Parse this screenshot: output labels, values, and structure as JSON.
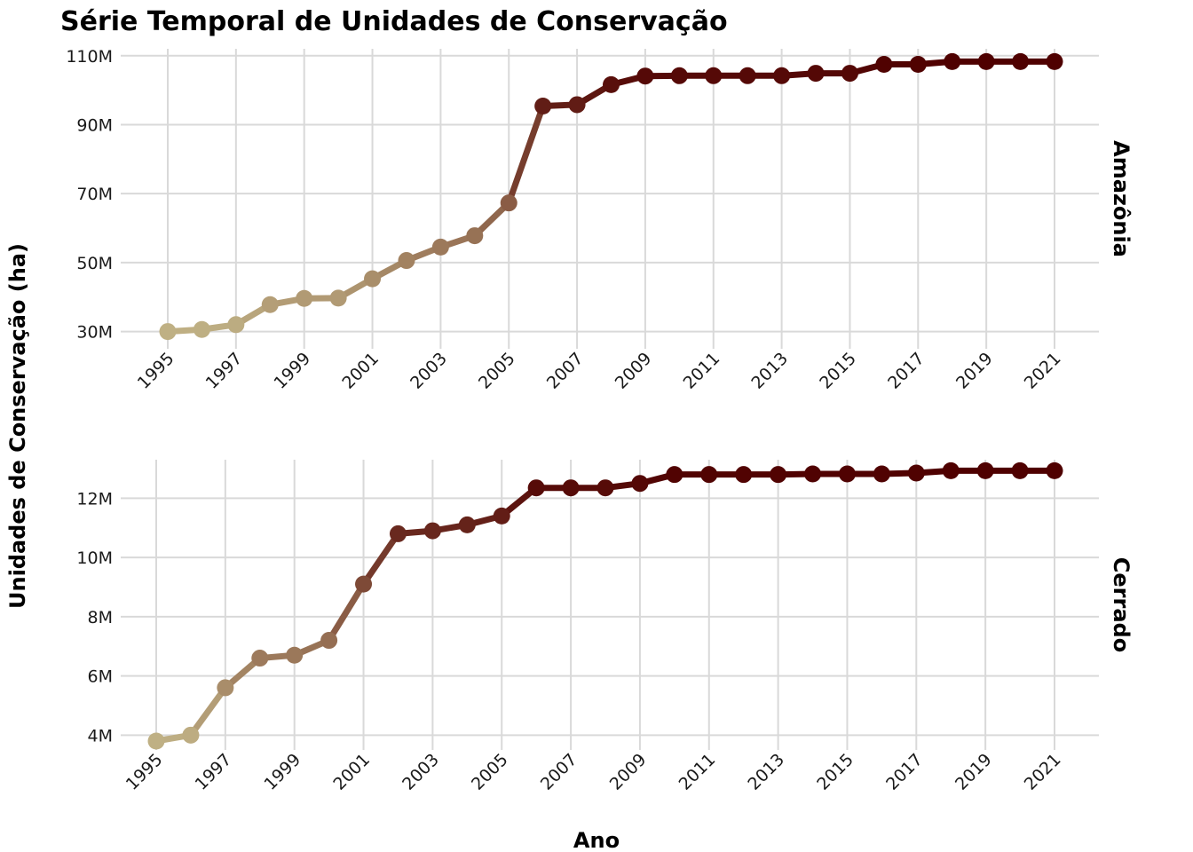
{
  "chart_data": {
    "type": "line",
    "title": "Série Temporal de Unidades de Conservação",
    "xlabel": "Ano",
    "ylabel": "Unidades de Conservação (ha)",
    "color_low": "#bfb084",
    "color_high": "#4f0000",
    "panels": [
      {
        "name": "Amazônia",
        "x": [
          1995,
          1996,
          1997,
          1998,
          1999,
          2000,
          2001,
          2002,
          2003,
          2004,
          2005,
          2006,
          2007,
          2008,
          2009,
          2010,
          2011,
          2012,
          2013,
          2014,
          2015,
          2016,
          2017,
          2018,
          2019,
          2020,
          2021
        ],
        "values": [
          30.0,
          30.6,
          32.0,
          37.8,
          39.6,
          39.7,
          45.3,
          50.6,
          54.5,
          57.8,
          67.3,
          95.4,
          95.8,
          101.6,
          104.1,
          104.2,
          104.2,
          104.2,
          104.2,
          104.9,
          104.9,
          107.5,
          107.5,
          108.3,
          108.3,
          108.3,
          108.3
        ],
        "ylim": [
          25,
          112
        ],
        "y_ticks": [
          30,
          50,
          70,
          90,
          110
        ],
        "y_tick_labels": [
          "30M",
          "50M",
          "70M",
          "90M",
          "110M"
        ],
        "x_ticks": [
          1995,
          1997,
          1999,
          2001,
          2003,
          2005,
          2007,
          2009,
          2011,
          2013,
          2015,
          2017,
          2019,
          2021
        ],
        "x_tick_labels": [
          "1995",
          "1997",
          "1999",
          "2001",
          "2003",
          "2005",
          "2007",
          "2009",
          "2011",
          "2013",
          "2015",
          "2017",
          "2019",
          "2021"
        ]
      },
      {
        "name": "Cerrado",
        "x": [
          1995,
          1996,
          1997,
          1998,
          1999,
          2000,
          2001,
          2002,
          2003,
          2004,
          2005,
          2006,
          2007,
          2008,
          2009,
          2010,
          2011,
          2012,
          2013,
          2014,
          2015,
          2016,
          2017,
          2018,
          2019,
          2020,
          2021
        ],
        "values": [
          3.8,
          4.0,
          5.6,
          6.6,
          6.7,
          7.2,
          9.1,
          10.8,
          10.9,
          11.1,
          11.4,
          12.35,
          12.35,
          12.35,
          12.5,
          12.8,
          12.8,
          12.8,
          12.8,
          12.82,
          12.82,
          12.82,
          12.85,
          12.93,
          12.93,
          12.93,
          12.93
        ],
        "ylim": [
          3.5,
          13.3
        ],
        "y_ticks": [
          4,
          6,
          8,
          10,
          12
        ],
        "y_tick_labels": [
          "4M",
          "6M",
          "8M",
          "10M",
          "12M"
        ],
        "x_ticks": [
          1995,
          1997,
          1999,
          2001,
          2003,
          2005,
          2007,
          2009,
          2011,
          2013,
          2015,
          2017,
          2019,
          2021
        ],
        "x_tick_labels": [
          "1995",
          "1997",
          "1999",
          "2001",
          "2003",
          "2005",
          "2007",
          "2009",
          "2011",
          "2013",
          "2015",
          "2017",
          "2019",
          "2021"
        ]
      }
    ]
  }
}
